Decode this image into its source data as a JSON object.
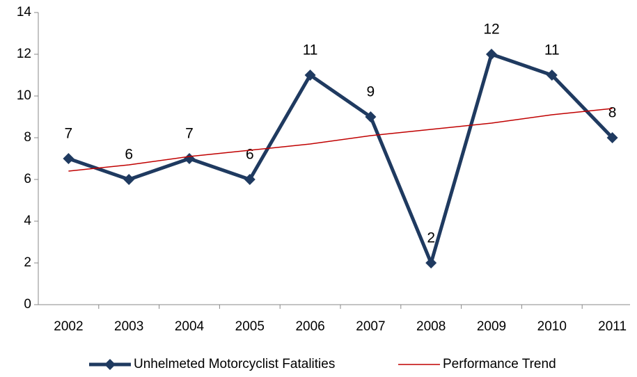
{
  "chart_data": {
    "type": "line",
    "categories": [
      "2002",
      "2003",
      "2004",
      "2005",
      "2006",
      "2007",
      "2008",
      "2009",
      "2010",
      "2011"
    ],
    "series": [
      {
        "name": "Unhelmeted Motorcyclist Fatalities",
        "color": "#1f3a60",
        "values": [
          7,
          6,
          7,
          6,
          11,
          9,
          2,
          12,
          11,
          8
        ]
      },
      {
        "name": "Performance Trend",
        "color": "#c00000",
        "values": [
          6.4,
          6.7,
          7.1,
          7.4,
          7.7,
          8.1,
          8.4,
          8.7,
          9.1,
          9.4
        ]
      }
    ],
    "ylim": [
      0,
      14
    ],
    "yticks": [
      0,
      2,
      4,
      6,
      8,
      10,
      12,
      14
    ],
    "grid": false,
    "legend": "bottom"
  }
}
